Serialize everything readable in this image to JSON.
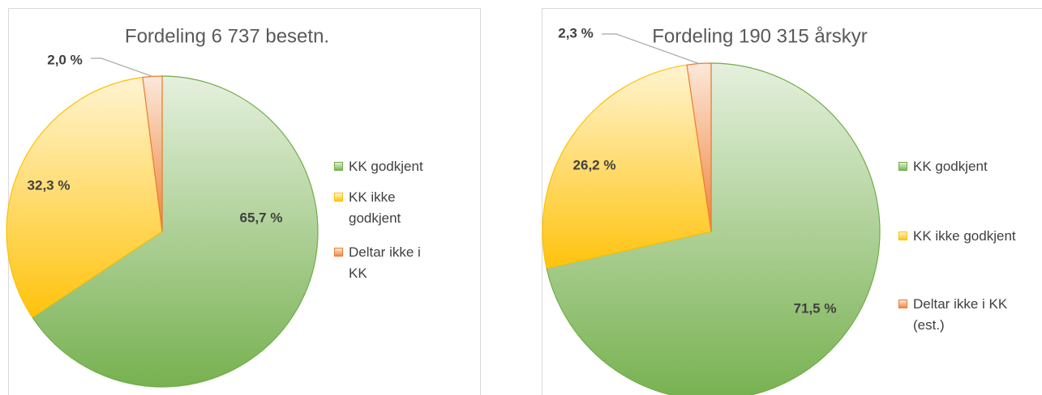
{
  "chart_data": [
    {
      "type": "pie",
      "title": "Fordeling 6 737 besetn.",
      "categories": [
        "KK godkjent",
        "KK ikke godkjent",
        "Deltar ikke i KK"
      ],
      "values": [
        65.7,
        32.3,
        2.0
      ],
      "value_labels": [
        "65,7 %",
        "32,3 %",
        "2,0 %"
      ],
      "colors": [
        "#70ad47",
        "#ffc000",
        "#ed7d31"
      ],
      "legend": "right"
    },
    {
      "type": "pie",
      "title": "Fordeling 190 315 årskyr",
      "categories": [
        "KK godkjent",
        "KK ikke godkjent",
        "Deltar ikke i KK (est.)"
      ],
      "values": [
        71.5,
        26.2,
        2.3
      ],
      "value_labels": [
        "71,5 %",
        "26,2 %",
        "2,3 %"
      ],
      "colors": [
        "#70ad47",
        "#ffc000",
        "#ed7d31"
      ],
      "legend": "right"
    }
  ]
}
